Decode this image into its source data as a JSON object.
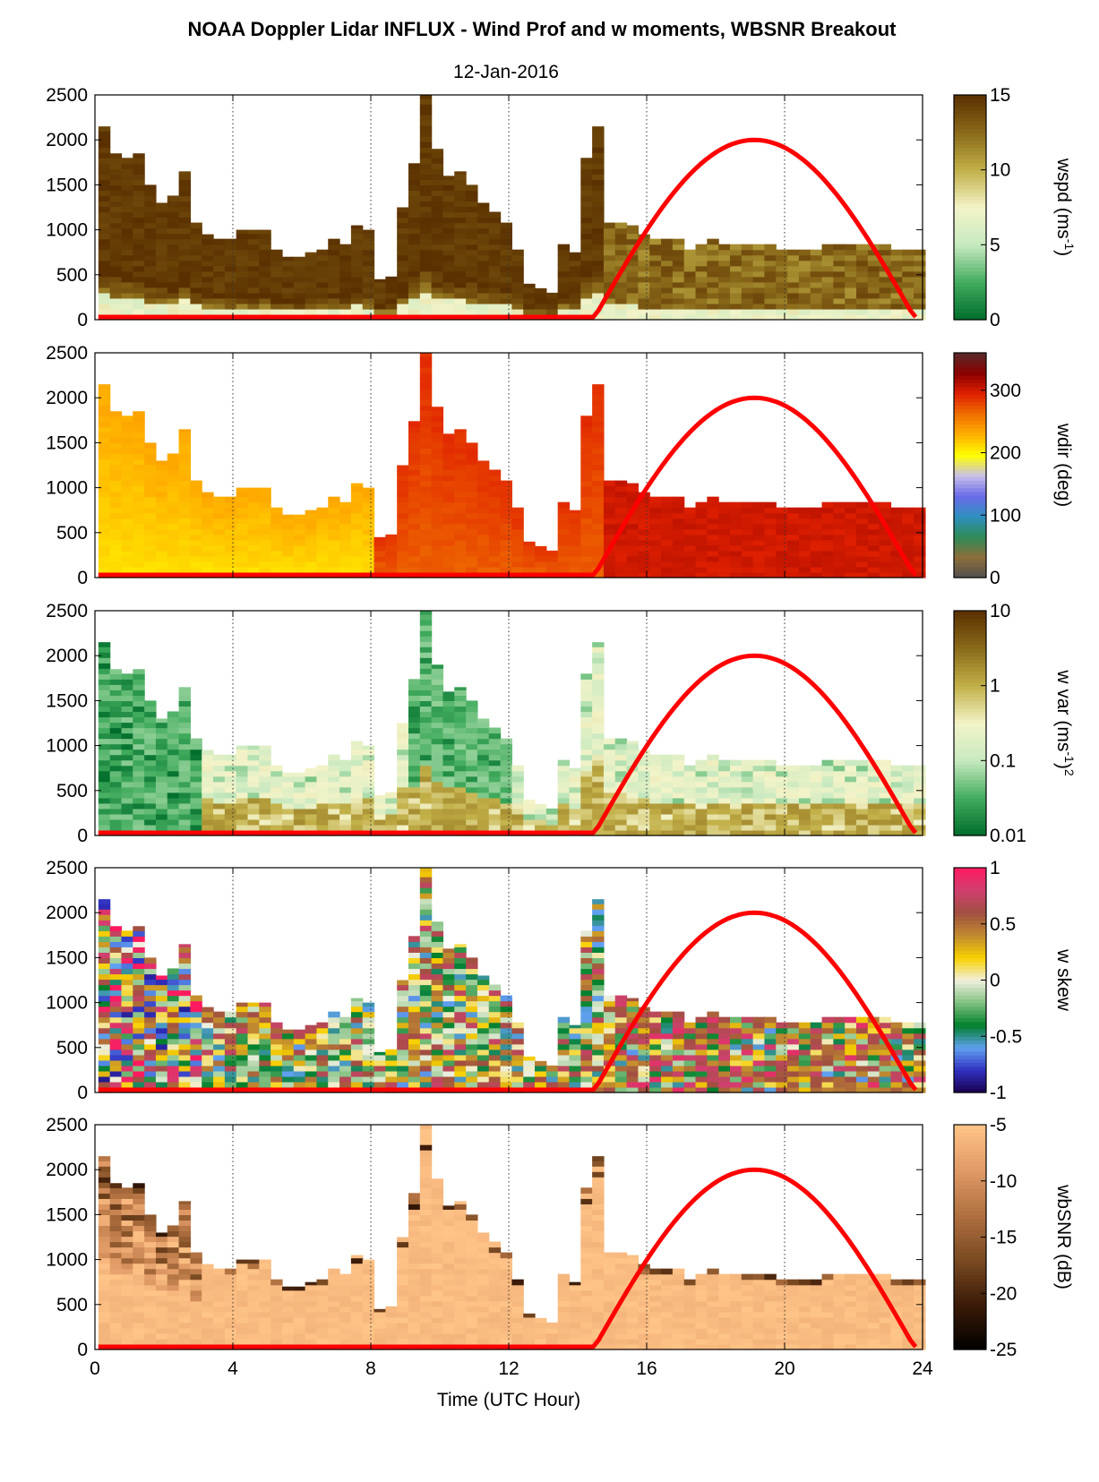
{
  "figure": {
    "title": "NOAA Doppler Lidar INFLUX - Wind Prof and w moments, WBSNR Breakout",
    "date": "12-Jan-2016",
    "xlabel": "Time (UTC Hour)"
  },
  "chart_data": [
    {
      "type": "heatmap",
      "name": "wspd",
      "colorbar_label": "wspd (ms",
      "colorbar_sup": "-1",
      "colorbar_suffix": ")",
      "clim": [
        0,
        15
      ],
      "cticks": [
        "0",
        "5",
        "10",
        "15"
      ],
      "ctick_values": [
        0,
        5,
        10,
        15
      ],
      "colormap": [
        "#006d2c",
        "#41ab5d",
        "#c7e9c0",
        "#f3f3c8",
        "#c2b048",
        "#8a6a1a",
        "#5a3000"
      ],
      "xlim": [
        0,
        24
      ],
      "ylim": [
        0,
        2500
      ],
      "xticks": [
        "0",
        "4",
        "8",
        "12",
        "16",
        "20",
        "24"
      ],
      "yticks": [
        "0",
        "500",
        "1000",
        "1500",
        "2000",
        "2500"
      ],
      "profile_tops": [
        2150,
        1850,
        1800,
        1850,
        1500,
        1300,
        1400,
        1650,
        1100,
        950,
        900,
        900,
        1000,
        1000,
        1000,
        800,
        700,
        700,
        750,
        800,
        900,
        850,
        1050,
        1000,
        450,
        500,
        1250,
        1750,
        2500,
        1900,
        1600,
        1650,
        1500,
        1300,
        1200,
        1100,
        800,
        400,
        350,
        300,
        850,
        750,
        1800,
        2150,
        1100,
        1100,
        1050,
        950,
        900,
        900,
        900,
        800,
        850,
        900,
        850,
        850,
        850,
        850,
        850,
        800,
        800,
        800,
        800,
        850,
        850,
        850,
        850,
        850,
        850,
        800,
        800,
        800
      ],
      "surface_speed": 7,
      "aloft_speed": 15
    },
    {
      "type": "heatmap",
      "name": "wdir",
      "colorbar_label": "wdir (deg)",
      "clim": [
        0,
        360
      ],
      "cticks": [
        "0",
        "100",
        "200",
        "300"
      ],
      "ctick_values": [
        0,
        100,
        200,
        300
      ],
      "colormap": [
        "#505050",
        "#8c6d3a",
        "#2e8b57",
        "#2f8fbf",
        "#6a6ae8",
        "#c8c0e8",
        "#ffff00",
        "#ffb000",
        "#f07000",
        "#e02000",
        "#8b0000",
        "#5a2a2a"
      ],
      "xlim": [
        0,
        24
      ],
      "ylim": [
        0,
        2500
      ],
      "xticks": [
        "0",
        "4",
        "8",
        "12",
        "16",
        "20",
        "24"
      ],
      "yticks": [
        "0",
        "500",
        "1000",
        "1500",
        "2000",
        "2500"
      ],
      "direction_early": 220,
      "direction_midday": 275,
      "direction_afternoon": 300
    },
    {
      "type": "heatmap",
      "name": "w var",
      "colorbar_label": "w var (ms",
      "colorbar_sup": "-1",
      "colorbar_suffix": ")",
      "colorbar_sup2": "2",
      "clim": [
        0.01,
        10
      ],
      "log_scale": true,
      "cticks": [
        "0.01",
        "0.1",
        "1",
        "10"
      ],
      "ctick_values": [
        0.01,
        0.1,
        1,
        10
      ],
      "colormap": [
        "#006d2c",
        "#41ab5d",
        "#c7e9c0",
        "#f3f3c8",
        "#c2b048",
        "#8a6a1a",
        "#5a3000"
      ],
      "xlim": [
        0,
        24
      ],
      "ylim": [
        0,
        2500
      ],
      "xticks": [
        "0",
        "4",
        "8",
        "12",
        "16",
        "20",
        "24"
      ],
      "yticks": [
        "0",
        "500",
        "1000",
        "1500",
        "2000",
        "2500"
      ]
    },
    {
      "type": "heatmap",
      "name": "w skew",
      "colorbar_label": "w skew",
      "clim": [
        -1,
        1
      ],
      "cticks": [
        "-1",
        "-0.5",
        "0",
        "0.5",
        "1"
      ],
      "ctick_values": [
        -1,
        -0.5,
        0,
        0.5,
        1
      ],
      "colormap": [
        "#1a0050",
        "#3030c0",
        "#60a0f0",
        "#00802a",
        "#80c080",
        "#f0f0e0",
        "#f8d000",
        "#c08a30",
        "#a05040",
        "#d04070",
        "#ff1a60"
      ],
      "xlim": [
        0,
        24
      ],
      "ylim": [
        0,
        2500
      ],
      "xticks": [
        "0",
        "4",
        "8",
        "12",
        "16",
        "20",
        "24"
      ],
      "yticks": [
        "0",
        "500",
        "1000",
        "1500",
        "2000",
        "2500"
      ]
    },
    {
      "type": "heatmap",
      "name": "wbSNR",
      "colorbar_label": "wbSNR (dB)",
      "clim": [
        -25,
        -5
      ],
      "cticks": [
        "-25",
        "-20",
        "-15",
        "-10",
        "-5"
      ],
      "ctick_values": [
        -25,
        -20,
        -15,
        -10,
        -5
      ],
      "colormap": [
        "#000000",
        "#3a1a08",
        "#7a4a22",
        "#b07040",
        "#e09a66",
        "#ffc488"
      ],
      "xlim": [
        0,
        24
      ],
      "ylim": [
        0,
        2500
      ],
      "xticks": [
        "0",
        "4",
        "8",
        "12",
        "16",
        "20",
        "24"
      ],
      "yticks": [
        "0",
        "500",
        "1000",
        "1500",
        "2000",
        "2500"
      ]
    }
  ],
  "solar_curve": {
    "color": "#ff0000",
    "rise_hour": 14.45,
    "noon_hour": 19.1,
    "set_hour": 23.8,
    "peak_height": 2000
  }
}
